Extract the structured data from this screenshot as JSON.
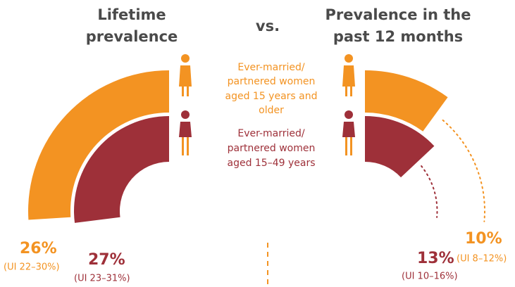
{
  "chart_data": {
    "type": "radial-ring",
    "title_connector": "vs.",
    "legend": [
      {
        "lines": [
          "Ever-married/",
          "partnered women",
          "aged 15 years and",
          "older"
        ],
        "color": "#f39322"
      },
      {
        "lines": [
          "Ever-married/",
          "partnered women",
          "aged 15–49 years"
        ],
        "color": "#9e3039"
      }
    ],
    "panels": [
      {
        "title": [
          "Lifetime",
          "prevalence"
        ],
        "direction": "left",
        "values": [
          26,
          27
        ],
        "value_labels": [
          "26%",
          "27%"
        ],
        "intervals": [
          "(UI 22–30%)",
          "(UI 23–31%)"
        ]
      },
      {
        "title": [
          "Prevalence in the",
          "past 12 months"
        ],
        "direction": "right",
        "values": [
          10,
          13
        ],
        "value_labels": [
          "10%",
          "13%"
        ],
        "intervals": [
          "(UI 8–12%)",
          "(UI 10–16%)"
        ]
      }
    ]
  }
}
